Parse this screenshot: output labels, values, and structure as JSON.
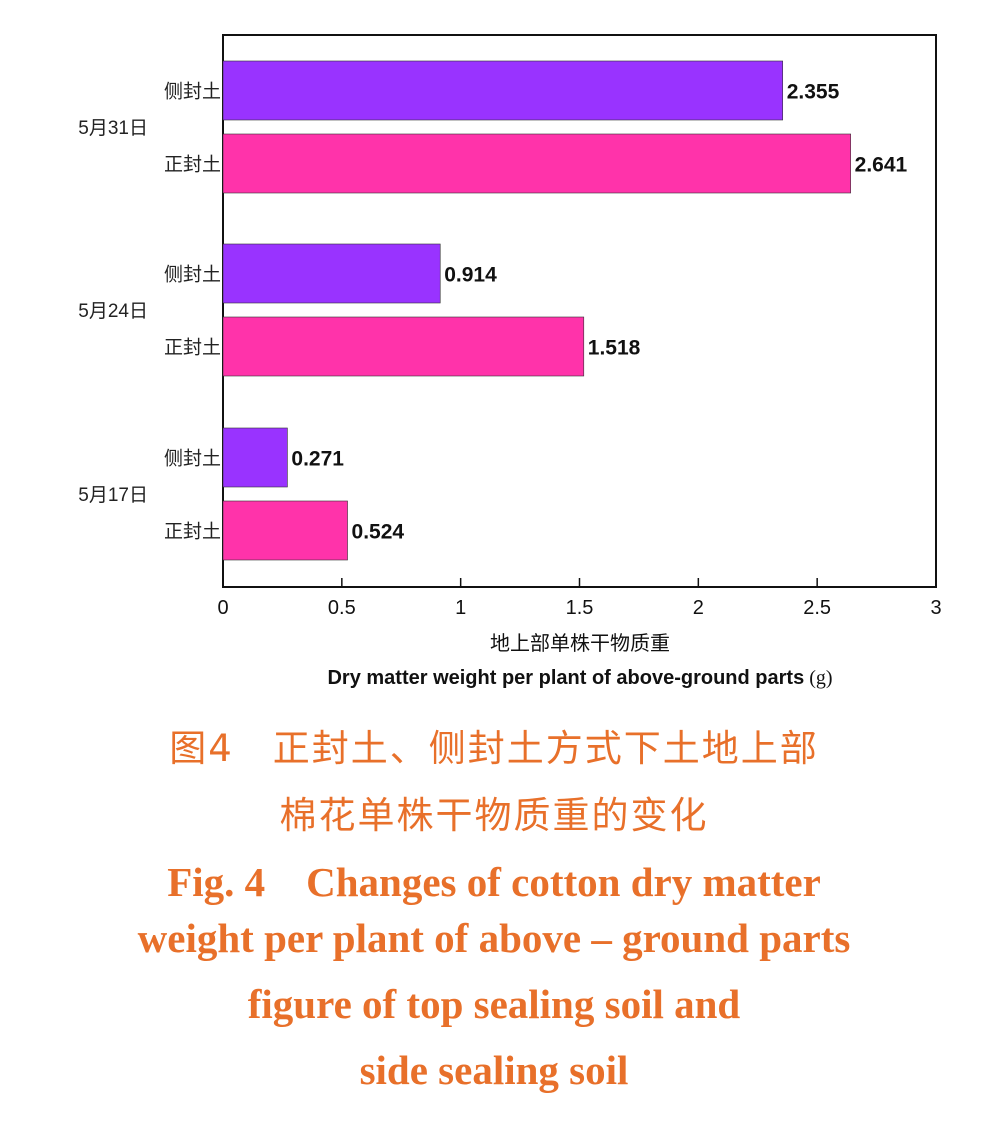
{
  "chart_data": {
    "type": "bar",
    "orientation": "horizontal",
    "groups": [
      {
        "label": "5月31日",
        "bars": [
          {
            "label": "侧封土",
            "value": 2.355,
            "value_label": "2.355"
          },
          {
            "label": "正封土",
            "value": 2.641,
            "value_label": "2.641"
          }
        ]
      },
      {
        "label": "5月24日",
        "bars": [
          {
            "label": "侧封土",
            "value": 0.914,
            "value_label": "0.914"
          },
          {
            "label": "正封土",
            "value": 1.518,
            "value_label": "1.518"
          }
        ]
      },
      {
        "label": "5月17日",
        "bars": [
          {
            "label": "侧封土",
            "value": 0.271,
            "value_label": "0.271"
          },
          {
            "label": "正封土",
            "value": 0.524,
            "value_label": "0.524"
          }
        ]
      }
    ],
    "xlim": [
      0,
      3
    ],
    "xticks": [
      0,
      0.5,
      1,
      1.5,
      2,
      2.5,
      3
    ],
    "xtick_labels": [
      "0",
      "0.5",
      "1",
      "1.5",
      "2",
      "2.5",
      "3"
    ],
    "xlabel_cn": "地上部单株干物质重",
    "xlabel_en": "Dry matter weight per plant of above-ground parts",
    "xlabel_unit": "(g)",
    "colors": {
      "侧封土": "#9933ff",
      "正封土": "#ff33aa"
    },
    "legend": "none",
    "grid": false
  },
  "caption": {
    "cn_line1": "图4　正封土、侧封土方式下土地上部",
    "cn_line2": "棉花单株干物质重的变化",
    "en_line1": "Fig. 4　Changes of cotton dry matter",
    "en_line2": "weight per plant of above – ground parts",
    "en_line3": "figure of top sealing soil and",
    "en_line4": "side sealing soil"
  }
}
